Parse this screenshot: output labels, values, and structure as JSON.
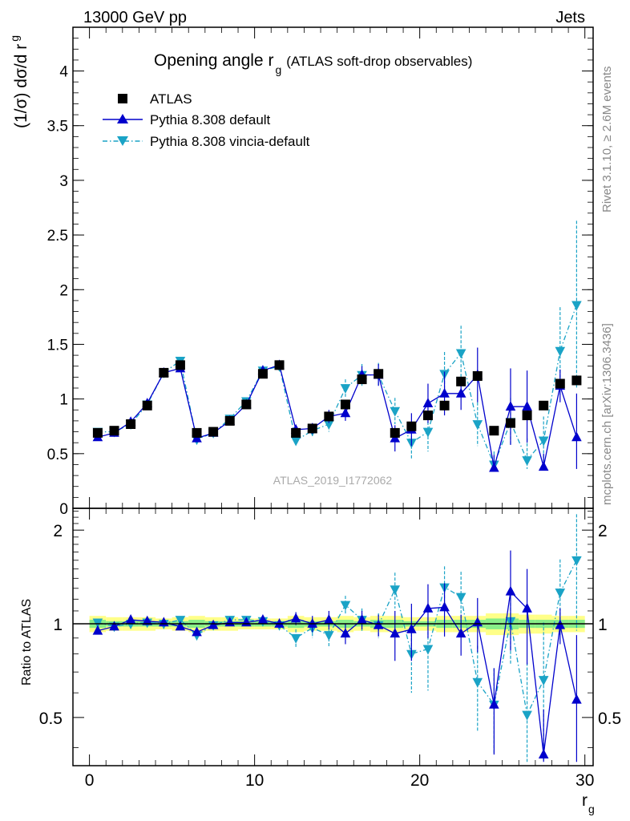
{
  "header": {
    "energy_label": "13000 GeV pp",
    "process_label": "Jets",
    "title_main": "Opening angle r",
    "title_sub": "g",
    "title_suffix": "(ATLAS soft-drop observables)",
    "side_rivet": "Rivet 3.1.10, ≥ 2.6M events",
    "side_mcplots": "mcplots.cern.ch [arXiv:1306.3436]",
    "watermark": "ATLAS_2019_I1772062"
  },
  "legend": {
    "data_label": "ATLAS",
    "mc1_label": "Pythia 8.308 default",
    "mc2_label": "Pythia 8.308 vincia-default"
  },
  "colors": {
    "data": "#000000",
    "mc1": "#0000cc",
    "mc2": "#1aa3c6",
    "band_outer": "#ffff88",
    "band_inner": "#88ee88"
  },
  "chart_data": [
    {
      "type": "scatter",
      "panel": "main",
      "ylabel_main": "(1/σ) dσ/d r",
      "ylabel_sub": "g",
      "xlim": [
        -1,
        30.5
      ],
      "ylim": [
        0,
        4.4
      ],
      "yticks": [
        0,
        0.5,
        1,
        1.5,
        2,
        2.5,
        3,
        3.5,
        4
      ],
      "yticklabels": [
        "0",
        "0.5",
        "1",
        "1.5",
        "2",
        "2.5",
        "3",
        "3.5",
        "4"
      ],
      "x": [
        0.5,
        1.5,
        2.5,
        3.5,
        4.5,
        5.5,
        6.5,
        7.5,
        8.5,
        9.5,
        10.5,
        11.5,
        12.5,
        13.5,
        14.5,
        15.5,
        16.5,
        17.5,
        18.5,
        19.5,
        20.5,
        21.5,
        22.5,
        23.5,
        24.5,
        25.5,
        26.5,
        27.5,
        28.5,
        29.5
      ],
      "series": [
        {
          "name": "ATLAS",
          "values": [
            0.69,
            0.71,
            0.77,
            0.94,
            1.24,
            1.31,
            0.69,
            0.7,
            0.8,
            0.95,
            1.23,
            1.31,
            0.69,
            0.73,
            0.84,
            0.95,
            1.18,
            1.23,
            0.69,
            0.75,
            0.85,
            0.94,
            1.16,
            1.21,
            0.71,
            0.78,
            0.85,
            0.94,
            1.14,
            1.17
          ]
        },
        {
          "name": "Pythia 8.308 default",
          "values": [
            0.65,
            0.69,
            0.79,
            0.96,
            1.24,
            1.28,
            0.64,
            0.69,
            0.8,
            0.95,
            1.26,
            1.31,
            0.72,
            0.73,
            0.84,
            0.87,
            1.22,
            1.22,
            0.64,
            0.72,
            0.96,
            1.05,
            1.05,
            1.22,
            0.37,
            0.93,
            0.93,
            0.38,
            1.12,
            0.65
          ],
          "errors": [
            0.01,
            0.01,
            0.01,
            0.02,
            0.02,
            0.03,
            0.01,
            0.01,
            0.02,
            0.02,
            0.03,
            0.03,
            0.04,
            0.05,
            0.06,
            0.07,
            0.08,
            0.1,
            0.12,
            0.15,
            0.18,
            0.2,
            0.15,
            0.25,
            0.12,
            0.35,
            0.33,
            0.12,
            0.15,
            0.4
          ]
        },
        {
          "name": "Pythia 8.308 vincia-default",
          "values": [
            0.7,
            0.7,
            0.77,
            0.95,
            1.24,
            1.35,
            0.63,
            0.69,
            0.82,
            0.98,
            1.26,
            1.3,
            0.62,
            0.71,
            0.77,
            1.1,
            1.22,
            1.22,
            0.89,
            0.6,
            0.7,
            1.23,
            1.42,
            0.77,
            0.4,
            0.79,
            0.44,
            0.62,
            1.44,
            1.86
          ],
          "errors": [
            0.01,
            0.01,
            0.01,
            0.02,
            0.02,
            0.03,
            0.01,
            0.01,
            0.02,
            0.02,
            0.03,
            0.03,
            0.04,
            0.05,
            0.07,
            0.08,
            0.1,
            0.11,
            0.12,
            0.15,
            0.18,
            0.2,
            0.25,
            0.2,
            0.12,
            0.22,
            0.2,
            0.22,
            0.4,
            0.77
          ]
        }
      ]
    },
    {
      "type": "scatter",
      "panel": "ratio",
      "ylabel": "Ratio to ATLAS",
      "xlabel_main": "r",
      "xlabel_sub": "g",
      "xlim": [
        -1,
        30.5
      ],
      "ylim": [
        0.35,
        2.35
      ],
      "yticks": [
        0.5,
        1,
        2
      ],
      "yticklabels": [
        "0.5",
        "1",
        "2"
      ],
      "xticks": [
        0,
        10,
        20,
        30
      ],
      "xticklabels": [
        "0",
        "10",
        "20",
        "30"
      ],
      "x": [
        0.5,
        1.5,
        2.5,
        3.5,
        4.5,
        5.5,
        6.5,
        7.5,
        8.5,
        9.5,
        10.5,
        11.5,
        12.5,
        13.5,
        14.5,
        15.5,
        16.5,
        17.5,
        18.5,
        19.5,
        20.5,
        21.5,
        22.5,
        23.5,
        24.5,
        25.5,
        26.5,
        27.5,
        28.5,
        29.5
      ],
      "band_outer": [
        0.06,
        0.05,
        0.05,
        0.05,
        0.04,
        0.05,
        0.06,
        0.05,
        0.05,
        0.04,
        0.04,
        0.04,
        0.06,
        0.05,
        0.05,
        0.06,
        0.05,
        0.06,
        0.06,
        0.05,
        0.05,
        0.06,
        0.06,
        0.06,
        0.08,
        0.08,
        0.07,
        0.07,
        0.06,
        0.06
      ],
      "band_inner": [
        0.03,
        0.02,
        0.02,
        0.02,
        0.02,
        0.02,
        0.03,
        0.02,
        0.02,
        0.02,
        0.02,
        0.02,
        0.03,
        0.02,
        0.02,
        0.03,
        0.02,
        0.03,
        0.03,
        0.02,
        0.02,
        0.03,
        0.03,
        0.03,
        0.04,
        0.04,
        0.03,
        0.03,
        0.03,
        0.03
      ],
      "series": [
        {
          "name": "Pythia 8.308 default",
          "values": [
            0.95,
            0.98,
            1.03,
            1.02,
            1.01,
            0.98,
            0.94,
            0.99,
            1.01,
            1.01,
            1.03,
            1.0,
            1.04,
            1.0,
            1.03,
            0.93,
            1.03,
            0.99,
            0.93,
            0.96,
            1.12,
            1.13,
            0.93,
            1.01,
            0.55,
            1.27,
            1.12,
            0.38,
            0.99,
            0.57
          ],
          "errors": [
            0.02,
            0.02,
            0.02,
            0.02,
            0.02,
            0.02,
            0.02,
            0.02,
            0.02,
            0.02,
            0.02,
            0.03,
            0.05,
            0.06,
            0.07,
            0.07,
            0.07,
            0.08,
            0.17,
            0.2,
            0.22,
            0.22,
            0.14,
            0.2,
            0.17,
            0.45,
            0.38,
            0.15,
            0.13,
            0.35
          ]
        },
        {
          "name": "Pythia 8.308 vincia-default",
          "values": [
            1.01,
            0.98,
            1.0,
            1.01,
            1.0,
            1.03,
            0.92,
            0.99,
            1.03,
            1.03,
            1.02,
            0.99,
            0.9,
            0.97,
            0.92,
            1.15,
            1.03,
            0.99,
            1.29,
            0.8,
            0.83,
            1.31,
            1.22,
            0.65,
            0.55,
            1.02,
            0.51,
            0.66,
            1.26,
            1.6
          ],
          "errors": [
            0.02,
            0.02,
            0.02,
            0.02,
            0.02,
            0.02,
            0.02,
            0.02,
            0.02,
            0.02,
            0.02,
            0.03,
            0.06,
            0.07,
            0.08,
            0.08,
            0.09,
            0.09,
            0.17,
            0.2,
            0.22,
            0.22,
            0.25,
            0.2,
            0.17,
            0.28,
            0.24,
            0.35,
            0.35,
            0.65
          ]
        }
      ]
    }
  ]
}
